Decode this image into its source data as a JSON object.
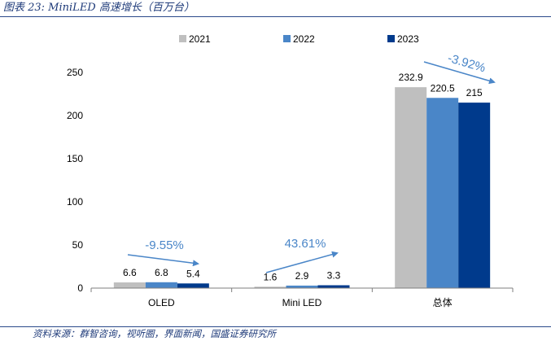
{
  "title": "图表 23:  MiniLED 高速增长（百万台）",
  "source": "资料来源：群智咨询，视听圈，界面新闻，国盛证券研究所",
  "colors": {
    "2021": "#bfbfbf",
    "2022": "#4a86c8",
    "2023": "#003a8c",
    "accent": "#4a86c8"
  },
  "chart_data": {
    "type": "bar",
    "categories": [
      "OLED",
      "Mini LED",
      "总体"
    ],
    "series": [
      {
        "name": "2021",
        "values": [
          6.6,
          1.6,
          232.9
        ]
      },
      {
        "name": "2022",
        "values": [
          6.8,
          2.9,
          220.5
        ]
      },
      {
        "name": "2023",
        "values": [
          5.4,
          3.3,
          215
        ]
      }
    ],
    "data_labels": [
      [
        "6.6",
        "1.6",
        "232.9"
      ],
      [
        "6.8",
        "2.9",
        "220.5"
      ],
      [
        "5.4",
        "3.3",
        "215"
      ]
    ],
    "annotations": [
      "-9.55%",
      "43.61%",
      "-3.92%"
    ],
    "ylim": [
      0,
      250
    ],
    "yticks": [
      0,
      50,
      100,
      150,
      200,
      250
    ],
    "legend_position": "top",
    "grid": false
  }
}
